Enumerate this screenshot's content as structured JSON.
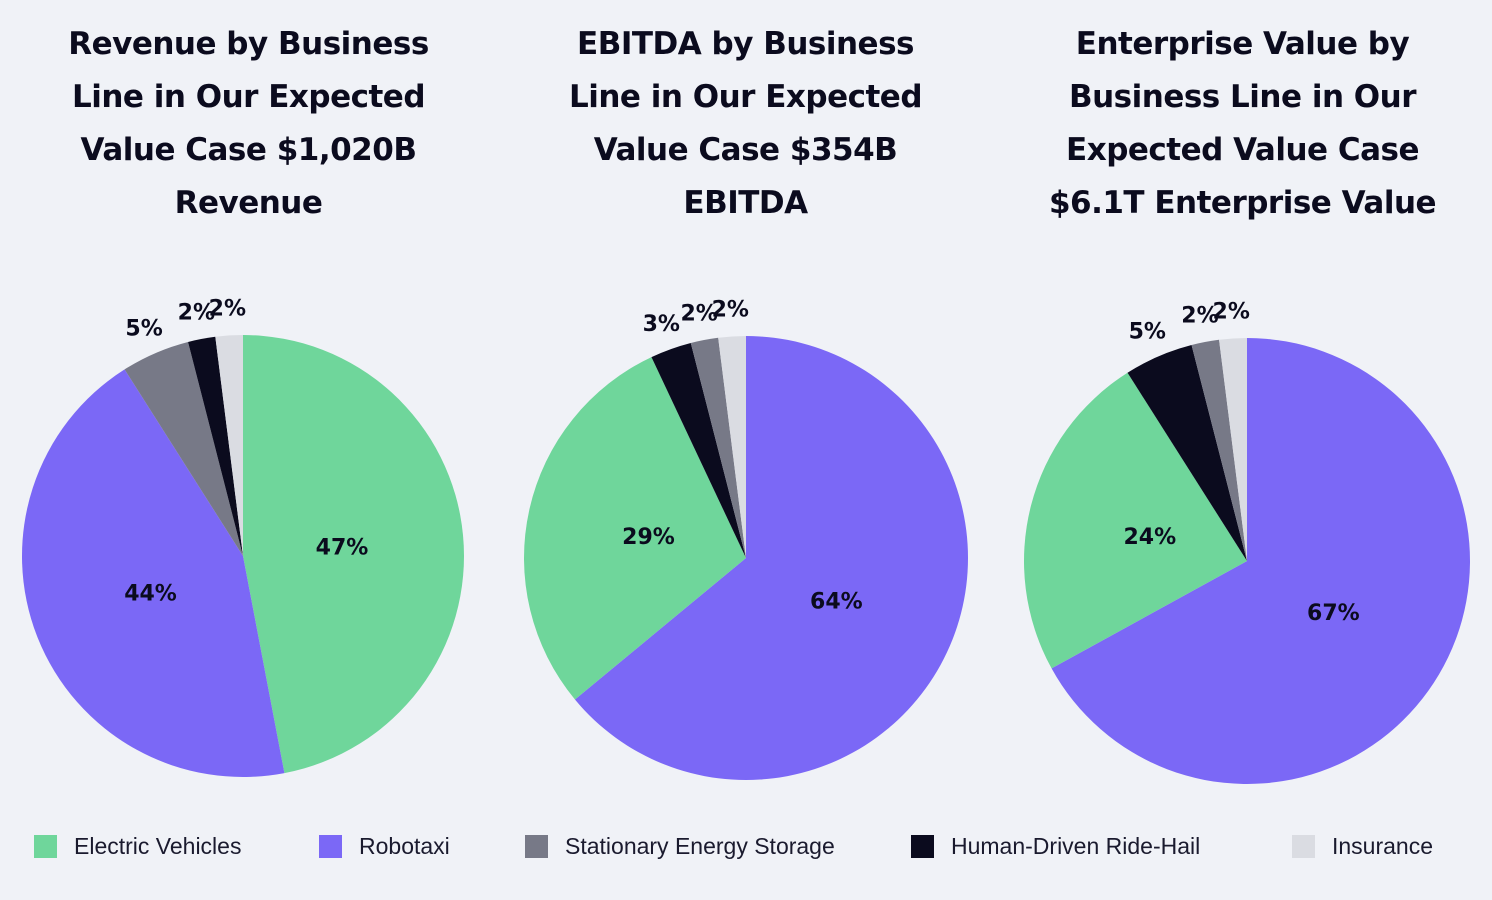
{
  "colors": {
    "Electric Vehicles": "#6fd69b",
    "Robotaxi": "#7b68f6",
    "Stationary Energy Storage": "#777987",
    "Human-Driven Ride-Hail": "#0b0b1e",
    "Insurance": "#dadce2"
  },
  "legend": [
    "Electric Vehicles",
    "Robotaxi",
    "Stationary Energy Storage",
    "Human-Driven Ride-Hail",
    "Insurance"
  ],
  "chart_data": [
    {
      "type": "pie",
      "title": "Revenue by Business Line in Our Expected Value Case $1,020B Revenue",
      "title_lines": [
        "Revenue by Business",
        "Line in Our Expected",
        "Value Case $1,020B",
        "Revenue"
      ],
      "slices": [
        {
          "name": "Electric Vehicles",
          "value": 47,
          "label": "47%"
        },
        {
          "name": "Robotaxi",
          "value": 44,
          "label": "44%"
        },
        {
          "name": "Stationary Energy Storage",
          "value": 5,
          "label": "5%"
        },
        {
          "name": "Human-Driven Ride-Hail",
          "value": 2,
          "label": "2%"
        },
        {
          "name": "Insurance",
          "value": 2,
          "label": "2%"
        }
      ]
    },
    {
      "type": "pie",
      "title": "EBITDA by Business Line in Our Expected Value Case $354B EBITDA",
      "title_lines": [
        "EBITDA by Business",
        "Line in Our Expected",
        "Value Case $354B",
        "EBITDA"
      ],
      "slices": [
        {
          "name": "Robotaxi",
          "value": 64,
          "label": "64%"
        },
        {
          "name": "Electric Vehicles",
          "value": 29,
          "label": "29%"
        },
        {
          "name": "Human-Driven Ride-Hail",
          "value": 3,
          "label": "3%"
        },
        {
          "name": "Stationary Energy Storage",
          "value": 2,
          "label": "2%"
        },
        {
          "name": "Insurance",
          "value": 2,
          "label": "2%"
        }
      ]
    },
    {
      "type": "pie",
      "title": "Enterprise Value by Business Line in Our Expected Value Case $6.1T Enterprise Value",
      "title_lines": [
        "Enterprise Value by",
        "Business Line in Our",
        "Expected Value Case",
        "$6.1T Enterprise Value"
      ],
      "slices": [
        {
          "name": "Robotaxi",
          "value": 67,
          "label": "67%"
        },
        {
          "name": "Electric Vehicles",
          "value": 24,
          "label": "24%"
        },
        {
          "name": "Human-Driven Ride-Hail",
          "value": 5,
          "label": "5%"
        },
        {
          "name": "Stationary Energy Storage",
          "value": 2,
          "label": "2%"
        },
        {
          "name": "Insurance",
          "value": 2,
          "label": "2%"
        }
      ]
    }
  ]
}
